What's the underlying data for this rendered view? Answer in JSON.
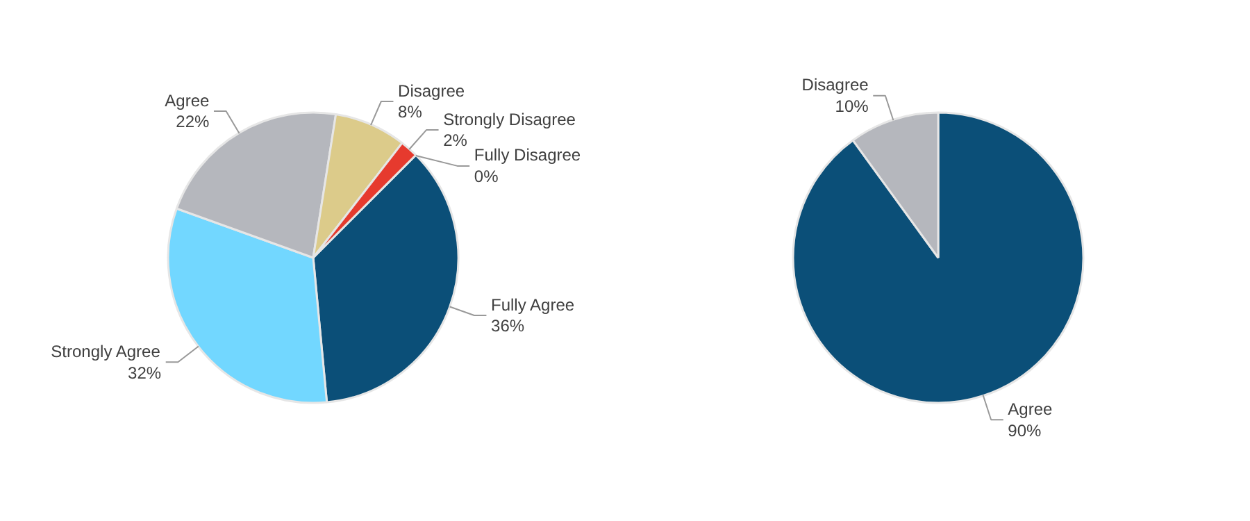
{
  "chart_data": [
    {
      "type": "pie",
      "categories": [
        "Fully Agree",
        "Strongly Agree",
        "Agree",
        "Disagree",
        "Strongly Disagree",
        "Fully Disagree"
      ],
      "values": [
        36,
        32,
        22,
        8,
        2,
        0
      ],
      "value_labels": [
        "36%",
        "32%",
        "22%",
        "8%",
        "2%",
        "0%"
      ],
      "colors": [
        "#0b4f78",
        "#72d7ff",
        "#b5b7bd",
        "#dccb8a",
        "#e63a2e",
        "#7a9a3a"
      ]
    },
    {
      "type": "pie",
      "categories": [
        "Agree",
        "Disagree"
      ],
      "values": [
        90,
        10
      ],
      "value_labels": [
        "90%",
        "10%"
      ],
      "colors": [
        "#0b4f78",
        "#b5b7bd"
      ]
    }
  ]
}
